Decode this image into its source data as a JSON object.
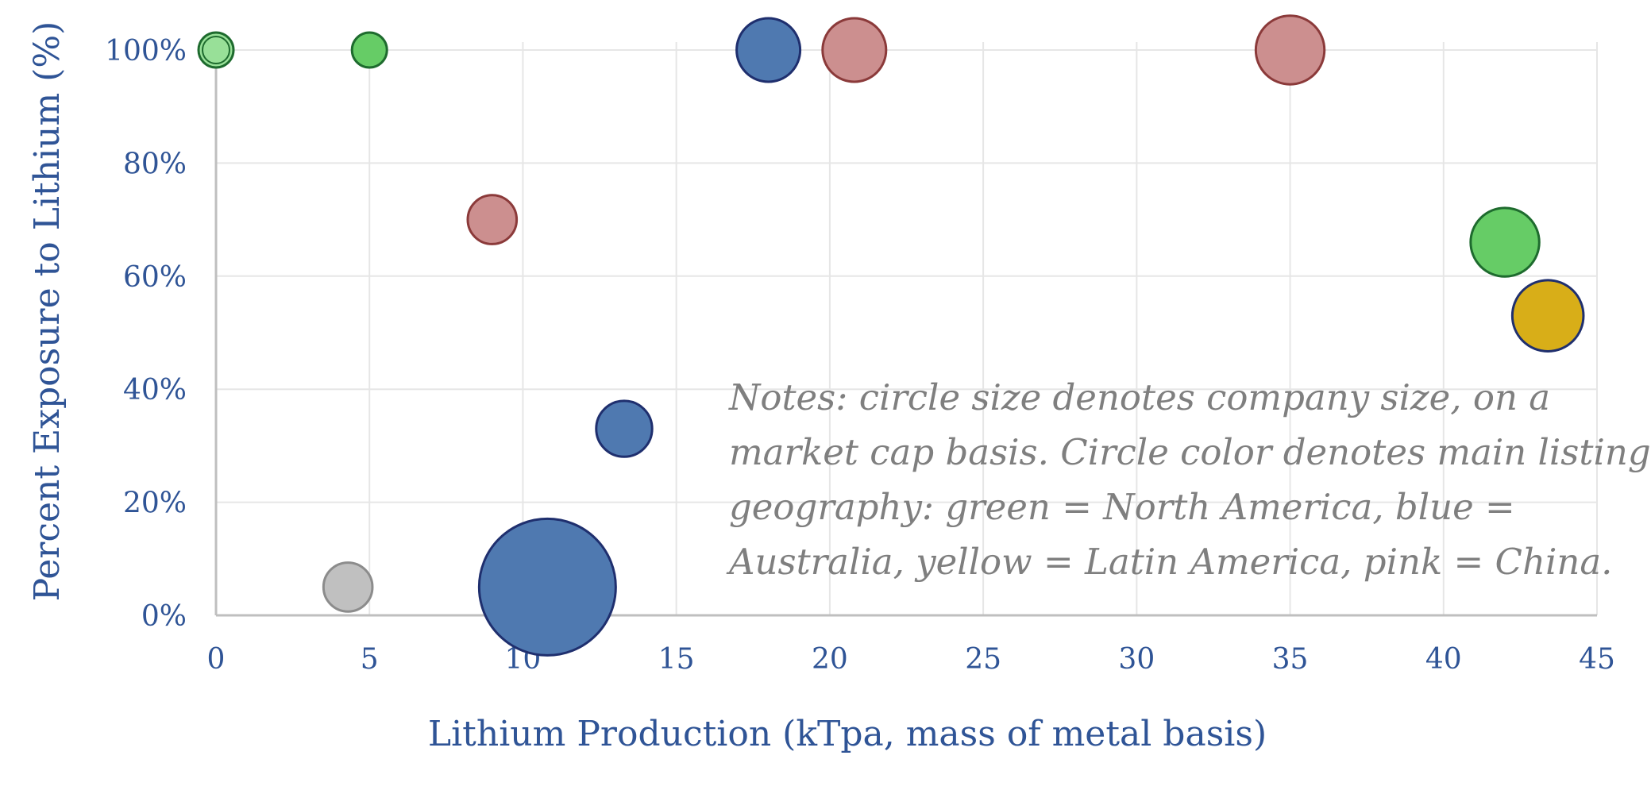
{
  "chart_data": {
    "type": "bubble",
    "title": "",
    "xlabel": "Lithium Production (kTpa, mass of metal basis)",
    "ylabel": "Percent Exposure to Lithium (%)",
    "xlim": [
      0,
      45
    ],
    "ylim": [
      0,
      100
    ],
    "x_ticks": [
      0,
      5,
      10,
      15,
      20,
      25,
      30,
      35,
      40,
      45
    ],
    "y_ticks": [
      0,
      20,
      40,
      60,
      80,
      100
    ],
    "x_tick_labels": [
      "0",
      "5",
      "10",
      "15",
      "20",
      "25",
      "30",
      "35",
      "40",
      "45"
    ],
    "y_tick_labels": [
      "0%",
      "20%",
      "40%",
      "60%",
      "80%",
      "100%"
    ],
    "grid": true,
    "legend": "none",
    "size_encoding": "relative market cap (radius scale)",
    "colors": {
      "green": "#66cc66",
      "light_green": "#98e098",
      "green_edge": "#1e6b2e",
      "blue": "#4f79b0",
      "blue_edge": "#1f2f6e",
      "pink": "#cc8f8f",
      "pink_edge": "#8b3a3a",
      "yellow": "#d8ae18",
      "yellow_edge": "#1f2f6e",
      "grey": "#c0c0c0",
      "grey_edge": "#8c8c8c"
    },
    "points": [
      {
        "x": 0.0,
        "y": 100,
        "size": 0.55,
        "color": "light_green"
      },
      {
        "x": 5.0,
        "y": 100,
        "size": 0.55,
        "color": "green"
      },
      {
        "x": 18.0,
        "y": 100,
        "size": 1.0,
        "color": "blue"
      },
      {
        "x": 20.8,
        "y": 100,
        "size": 1.0,
        "color": "pink"
      },
      {
        "x": 35.0,
        "y": 100,
        "size": 1.08,
        "color": "pink"
      },
      {
        "x": 9.0,
        "y": 70,
        "size": 0.77,
        "color": "pink"
      },
      {
        "x": 42.0,
        "y": 66,
        "size": 1.08,
        "color": "green"
      },
      {
        "x": 43.4,
        "y": 53,
        "size": 1.12,
        "color": "yellow"
      },
      {
        "x": 13.3,
        "y": 33,
        "size": 0.88,
        "color": "blue"
      },
      {
        "x": 4.3,
        "y": 5,
        "size": 0.77,
        "color": "grey"
      },
      {
        "x": 10.8,
        "y": 5,
        "size": 2.15,
        "color": "blue"
      }
    ],
    "annotation": {
      "lines": [
        "Notes: circle size denotes company size,  on a",
        "market cap basis. Circle color denotes main listing",
        "geography: green = North America, blue =",
        "Australia, yellow = Latin America, pink = China."
      ]
    }
  }
}
